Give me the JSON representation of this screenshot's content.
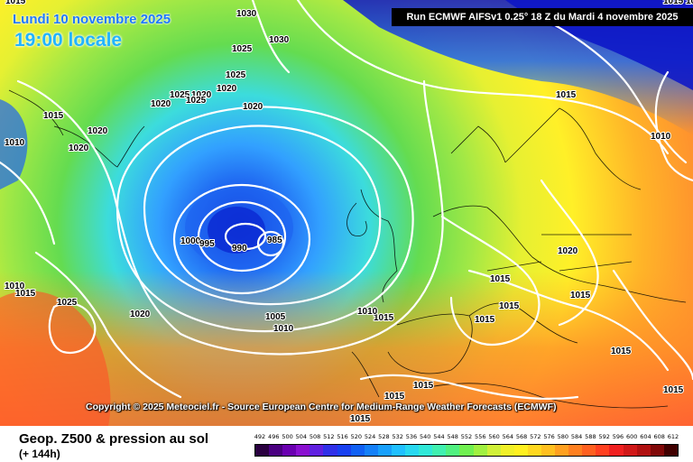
{
  "map": {
    "valid_date": "Lundi 10 novembre 2025",
    "valid_time": "19:00 locale",
    "run_info": "Run ECMWF AIFSv1 0.25° 18 Z du Mardi 4 novembre 2025",
    "copyright": "Copyright © 2025 Meteociel.fr - Source European Centre for Medium-Range Weather Forecasts (ECMWF)",
    "parameter": "Geop. Z500 & pression au sol",
    "lead_time": "(+ 144h)",
    "low_center_label": "990",
    "isobar_labels": [
      "1030",
      "1030",
      "1025",
      "1025",
      "1025",
      "1020",
      "1025",
      "1020",
      "1020",
      "1020",
      "1015",
      "1020",
      "1010",
      "1015",
      "1010",
      "1015",
      "1020",
      "1000",
      "995",
      "990",
      "985",
      "1010",
      "1015",
      "1025",
      "1020",
      "1005",
      "1010",
      "1015",
      "1015",
      "1015",
      "1020",
      "1015",
      "1015",
      "1015",
      "1015",
      "1015",
      "1015",
      "1015",
      "1015",
      "1010",
      "1020"
    ],
    "colors": {
      "deep_low": "#0a14c8",
      "low": "#1e64f0",
      "mid_blue": "#32a0ff",
      "cyan": "#3cdcdc",
      "green": "#64dc50",
      "yellow_green": "#c8f03c",
      "yellow": "#fff028",
      "orange": "#ffa028",
      "red_orange": "#ff6432",
      "isobar": "#ffffff",
      "coastline": "#000000"
    }
  },
  "legend": {
    "scale_values": [
      "492",
      "496",
      "500",
      "504",
      "508",
      "512",
      "516",
      "520",
      "524",
      "528",
      "532",
      "536",
      "540",
      "544",
      "548",
      "552",
      "556",
      "560",
      "564",
      "568",
      "572",
      "576",
      "580",
      "584",
      "588",
      "592",
      "596",
      "600",
      "604",
      "608",
      "612"
    ],
    "scale_colors": [
      "#2a0040",
      "#4a0080",
      "#6a00b0",
      "#8a10d0",
      "#6020e0",
      "#3030e8",
      "#1840f0",
      "#1060f4",
      "#1480f8",
      "#18a0fc",
      "#20c0ff",
      "#28d8f0",
      "#30e8d8",
      "#40f0b0",
      "#50f080",
      "#70f050",
      "#a0f040",
      "#d0f038",
      "#f0f028",
      "#fff020",
      "#ffd820",
      "#ffc020",
      "#ffa020",
      "#ff8020",
      "#ff6020",
      "#ff4020",
      "#f02020",
      "#d01818",
      "#b01010",
      "#800808",
      "#400000"
    ]
  }
}
